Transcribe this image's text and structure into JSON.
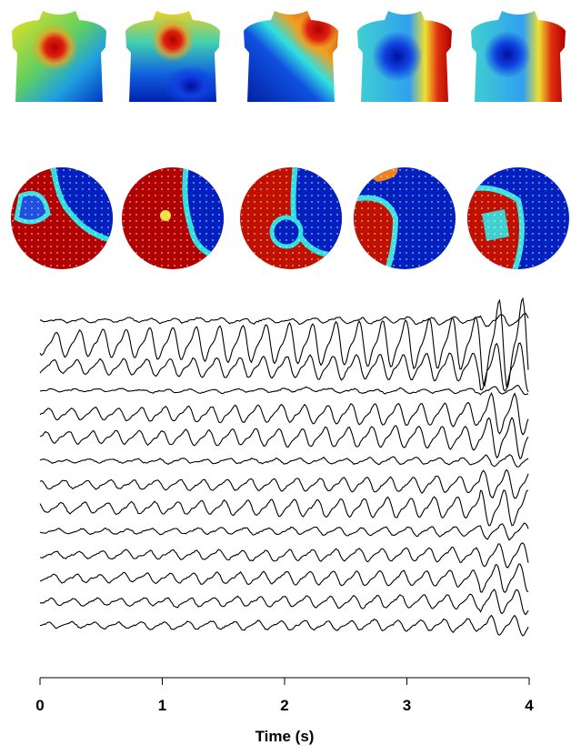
{
  "chart_data": {
    "type": "line",
    "xlabel": "Time (s)",
    "xlim": [
      0,
      4
    ],
    "xticks": [
      0,
      1,
      2,
      3,
      4
    ]
  }
}
